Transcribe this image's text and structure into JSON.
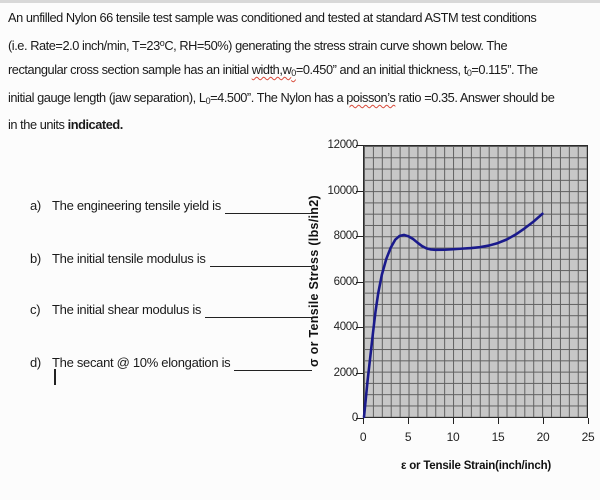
{
  "paragraph": {
    "runs": [
      {
        "t": "An unfilled Nylon 66 tensile test sample was conditioned and tested at standard ASTM test conditions"
      },
      {
        "br": true
      },
      {
        "t": "(i.e. Rate=2.0 inch/min, T=23"
      },
      {
        "t": "o",
        "s": "sup"
      },
      {
        "t": "C, RH=50%) generating the stress strain curve shown below. The"
      },
      {
        "br": true
      },
      {
        "t": "rectangular cross section sample has an initial "
      },
      {
        "t": "width,w",
        "s": "wavy"
      },
      {
        "t": "0",
        "s": "wavy-sub"
      },
      {
        "t": "=0.450” and an initial thickness, t"
      },
      {
        "t": "0",
        "s": "sub"
      },
      {
        "t": "=0.115”. The"
      },
      {
        "br": true
      },
      {
        "t": "initial gauge length (jaw separation), L"
      },
      {
        "t": "0",
        "s": "sub"
      },
      {
        "t": "=4.500”. The Nylon has a "
      },
      {
        "t": "poisson’s",
        "s": "wavy"
      },
      {
        "t": " ratio =0.35. Answer should be"
      },
      {
        "br": true
      },
      {
        "t": "in the units "
      },
      {
        "t": "indicated.",
        "s": "b"
      }
    ]
  },
  "questions": [
    {
      "label": "a)",
      "text": "The engineering tensile yield is"
    },
    {
      "label": "b)",
      "text": "The initial tensile modulus is"
    },
    {
      "label": "c)",
      "text": "The initial shear modulus is"
    },
    {
      "label": "d)",
      "text": "The secant @ 10% elongation is"
    }
  ],
  "chart_data": {
    "type": "line",
    "title": "",
    "xlabel": "ε or Tensile Strain(inch/inch)",
    "ylabel": "σ or Tensile Stress (lbs/in2)",
    "xlim": [
      0,
      25
    ],
    "ylim": [
      0,
      12000
    ],
    "x_ticks": [
      0,
      5,
      10,
      15,
      20,
      25
    ],
    "y_ticks": [
      0,
      2000,
      4000,
      6000,
      8000,
      10000,
      12000
    ],
    "grid": {
      "on": true,
      "x_minor_step": 1,
      "y_minor_step": 500,
      "plot_bg": "#c7c7c7",
      "line_color": "#5f5f5f"
    },
    "legend": "none",
    "series": [
      {
        "name": "Nylon 66 stress-strain curve",
        "color": "#1a1a8c",
        "points": [
          [
            0,
            0
          ],
          [
            0.2,
            800
          ],
          [
            0.4,
            1600
          ],
          [
            0.6,
            2300
          ],
          [
            0.8,
            3000
          ],
          [
            1.0,
            3700
          ],
          [
            1.3,
            4700
          ],
          [
            1.6,
            5500
          ],
          [
            2.0,
            6300
          ],
          [
            2.5,
            7000
          ],
          [
            3.0,
            7500
          ],
          [
            3.5,
            7850
          ],
          [
            4.0,
            8020
          ],
          [
            4.5,
            8060
          ],
          [
            5.0,
            8000
          ],
          [
            5.5,
            7880
          ],
          [
            6.0,
            7720
          ],
          [
            6.5,
            7570
          ],
          [
            7.0,
            7470
          ],
          [
            7.5,
            7420
          ],
          [
            8.0,
            7400
          ],
          [
            9.0,
            7405
          ],
          [
            10.0,
            7430
          ],
          [
            11.0,
            7455
          ],
          [
            12.0,
            7480
          ],
          [
            13.0,
            7520
          ],
          [
            14.0,
            7590
          ],
          [
            15.0,
            7700
          ],
          [
            16.0,
            7860
          ],
          [
            17.0,
            8080
          ],
          [
            18.0,
            8350
          ],
          [
            19.0,
            8650
          ],
          [
            20.0,
            9000
          ]
        ]
      }
    ]
  }
}
